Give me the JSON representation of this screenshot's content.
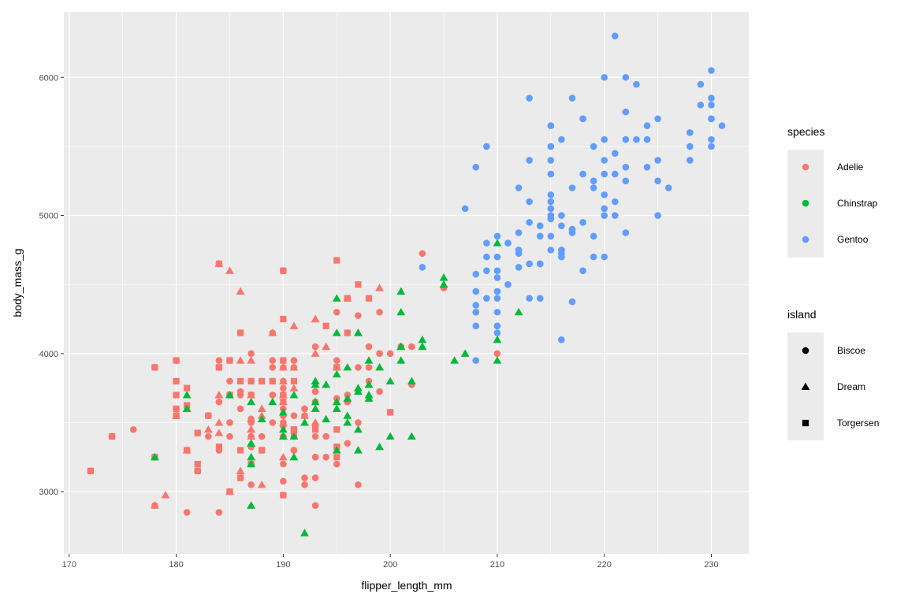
{
  "chart_data": {
    "type": "scatter",
    "xlabel": "flipper_length_mm",
    "ylabel": "body_mass_g",
    "xlim": [
      169.5,
      233.5
    ],
    "ylim": [
      2550,
      6475
    ],
    "x_ticks": [
      170,
      180,
      190,
      200,
      210,
      220,
      230
    ],
    "y_ticks": [
      3000,
      4000,
      5000,
      6000
    ],
    "grid": true,
    "legend_placement": "right",
    "legends": [
      {
        "title": "species",
        "entries": [
          {
            "label": "Adelie",
            "color": "#F8766D"
          },
          {
            "label": "Chinstrap",
            "color": "#00BA38"
          },
          {
            "label": "Gentoo",
            "color": "#619CFF"
          }
        ]
      },
      {
        "title": "island",
        "entries": [
          {
            "label": "Biscoe",
            "shape": "circle"
          },
          {
            "label": "Dream",
            "shape": "triangle"
          },
          {
            "label": "Torgersen",
            "shape": "square"
          }
        ]
      }
    ],
    "series": [
      {
        "species": "Adelie",
        "island": "Torgersen",
        "x": [
          181,
          186,
          195,
          193,
          190,
          181,
          195,
          193,
          190,
          186,
          180,
          182,
          191,
          198,
          185,
          195,
          197,
          184,
          194,
          174,
          180,
          189,
          185,
          180,
          187,
          183,
          187,
          172,
          180,
          178,
          178,
          188,
          184,
          195,
          196,
          190,
          180,
          181,
          184,
          182,
          195,
          186,
          196,
          185,
          190,
          182,
          190,
          191,
          186,
          188,
          190,
          200,
          187,
          191
        ],
        "y": [
          3750,
          3800,
          3250,
          3450,
          3650,
          3625,
          4675,
          3475,
          4250,
          3300,
          3700,
          3200,
          3800,
          4400,
          3700,
          3450,
          4500,
          3325,
          4200,
          3400,
          3600,
          3800,
          3950,
          3800,
          3800,
          3550,
          3200,
          3150,
          3950,
          3250,
          3900,
          3300,
          3900,
          3325,
          4150,
          3950,
          3550,
          3300,
          4650,
          3150,
          3900,
          3100,
          4400,
          3000,
          4600,
          3425,
          2975,
          3450,
          4150,
          3800,
          3700,
          3575,
          3700,
          3450
        ]
      },
      {
        "species": "Adelie",
        "island": "Biscoe",
        "x": [
          174,
          180,
          189,
          185,
          180,
          187,
          183,
          187,
          172,
          180,
          178,
          178,
          188,
          184,
          195,
          196,
          190,
          180,
          181,
          184,
          182,
          195,
          186,
          196,
          185,
          190,
          182,
          190,
          191,
          186,
          188,
          190,
          200,
          187,
          191,
          186,
          193,
          181,
          194,
          185,
          195,
          185,
          192,
          184,
          192,
          195,
          188,
          190,
          198,
          190,
          196,
          197,
          190,
          195,
          191,
          184,
          187,
          195,
          189,
          196,
          187,
          193,
          191,
          194,
          190,
          189,
          189,
          190,
          202,
          205,
          185,
          186,
          187,
          208,
          190,
          196,
          178,
          192,
          192,
          203,
          183,
          190,
          193,
          184,
          199,
          190,
          181,
          197,
          198,
          191,
          193,
          197,
          191,
          196,
          188,
          199,
          189,
          189,
          187,
          198,
          176,
          202,
          186,
          199,
          191,
          195,
          191,
          210,
          190,
          197,
          193,
          199,
          187,
          190,
          191,
          200,
          185,
          193,
          193,
          187,
          188,
          190,
          192,
          185,
          190,
          184,
          195,
          193,
          187,
          201
        ],
        "y": [
          3400,
          3600,
          3800,
          3950,
          3800,
          3800,
          3550,
          3200,
          3150,
          3950,
          3250,
          3900,
          3300,
          3900,
          3325,
          4150,
          3950,
          3550,
          3300,
          4650,
          3150,
          3900,
          3100,
          4400,
          3000,
          4600,
          3425,
          2975,
          3450,
          4150,
          3800,
          3700,
          3575,
          3700,
          3450,
          3600,
          2900,
          3300,
          3400,
          3700,
          3200,
          3800,
          3600,
          3950,
          3550,
          4300,
          3800,
          3400,
          4050,
          3700,
          3350,
          3050,
          3550,
          3900,
          3400,
          3650,
          3500,
          3900,
          3900,
          3650,
          3525,
          3725,
          3950,
          3250,
          3750,
          4150,
          3700,
          3800,
          3775,
          4475,
          3400,
          3700,
          4000,
          4300,
          3900,
          3650,
          2900,
          3050,
          3100,
          4725,
          3400,
          3200,
          3250,
          3300,
          4000,
          3500,
          2850,
          4275,
          3800,
          3900,
          3100,
          3900,
          3300,
          3700,
          3800,
          4000,
          3500,
          3950,
          3050,
          3900,
          3450,
          4050,
          3725,
          3725,
          3425,
          3675,
          3300,
          4000,
          3600,
          3500,
          3650,
          4300,
          3325,
          3075,
          3550,
          4000,
          3500,
          3650,
          4050,
          3800,
          3400,
          3400,
          3600,
          3700,
          3475,
          2850,
          3950,
          3400,
          3400,
          4050
        ]
      },
      {
        "species": "Adelie",
        "island": "Dream",
        "x": [
          190,
          195,
          191,
          187,
          193,
          184,
          190,
          188,
          190,
          187,
          184,
          183,
          188,
          184,
          195,
          190,
          185,
          190,
          178,
          192,
          184,
          195,
          186,
          190,
          181,
          187,
          185,
          193,
          186,
          192,
          180,
          187,
          190,
          188,
          197,
          186,
          190,
          193,
          196,
          187,
          193,
          194,
          191,
          187,
          179,
          181,
          191,
          186,
          188,
          199,
          189,
          187
        ],
        "y": [
          3900,
          3650,
          3750,
          3700,
          4250,
          3700,
          3800,
          3550,
          3650,
          2900,
          3500,
          3450,
          3050,
          3425,
          3900,
          3700,
          4600,
          3250,
          2900,
          3500,
          4650,
          3600,
          3150,
          3700,
          3600,
          3450,
          3000,
          4000,
          4450,
          3550,
          3550,
          3950,
          3500,
          3600,
          4150,
          3950,
          3400,
          3500,
          4400,
          3400,
          4250,
          4050,
          4200,
          3450,
          2975,
          3300,
          3900,
          4450,
          3600,
          4475,
          4150,
          3525
        ]
      },
      {
        "species": "Chinstrap",
        "island": "Dream",
        "x": [
          192,
          196,
          193,
          188,
          197,
          198,
          178,
          197,
          195,
          198,
          193,
          194,
          185,
          201,
          190,
          201,
          197,
          181,
          190,
          195,
          181,
          191,
          187,
          193,
          195,
          197,
          200,
          200,
          191,
          205,
          187,
          201,
          187,
          203,
          195,
          199,
          195,
          210,
          192,
          205,
          210,
          187,
          196,
          196,
          196,
          201,
          190,
          212,
          187,
          198,
          199,
          201,
          193,
          203,
          187,
          197,
          191,
          203,
          202,
          194,
          206,
          189,
          195,
          207,
          202,
          193,
          210,
          198
        ],
        "y": [
          3500,
          3900,
          3650,
          3525,
          3725,
          3950,
          3250,
          3750,
          4150,
          3700,
          3800,
          3775,
          3700,
          4050,
          3575,
          4050,
          3300,
          3700,
          3450,
          4400,
          3600,
          3400,
          2900,
          3800,
          3300,
          4150,
          3400,
          3800,
          3700,
          4550,
          3200,
          4300,
          3350,
          4100,
          3600,
          3900,
          3850,
          4800,
          2700,
          4500,
          3950,
          3650,
          3550,
          3500,
          3675,
          4450,
          3400,
          4300,
          3250,
          3675,
          3325,
          3950,
          3600,
          4050,
          3350,
          3450,
          3250,
          4050,
          3800,
          3525,
          3950,
          3650,
          3650,
          4000,
          3400,
          3775,
          4100,
          3775
        ]
      },
      {
        "species": "Gentoo",
        "island": "Biscoe",
        "x": [
          211,
          230,
          210,
          218,
          215,
          210,
          211,
          219,
          209,
          215,
          214,
          216,
          214,
          213,
          210,
          217,
          210,
          221,
          209,
          222,
          218,
          215,
          213,
          215,
          215,
          215,
          216,
          215,
          210,
          220,
          222,
          209,
          207,
          230,
          220,
          220,
          213,
          219,
          208,
          208,
          208,
          225,
          210,
          216,
          222,
          217,
          210,
          225,
          213,
          215,
          210,
          220,
          210,
          225,
          217,
          220,
          208,
          220,
          208,
          224,
          208,
          221,
          214,
          231,
          219,
          230,
          214,
          229,
          220,
          223,
          216,
          221,
          221,
          217,
          216,
          230,
          209,
          220,
          215,
          223,
          212,
          221,
          212,
          224,
          212,
          228,
          218,
          218,
          212,
          230,
          218,
          228,
          212,
          224,
          214,
          226,
          216,
          222,
          203,
          225,
          219,
          228,
          215,
          228,
          216,
          215,
          210,
          219,
          208,
          209,
          216,
          229,
          213,
          230,
          217,
          230,
          217,
          222,
          214,
          215,
          222,
          212,
          213
        ],
        "y": [
          4500,
          5700,
          4450,
          5700,
          5400,
          4550,
          4800,
          5200,
          4400,
          5150,
          4650,
          5550,
          4650,
          5850,
          4200,
          5850,
          4150,
          6300,
          4800,
          5350,
          5700,
          5000,
          4400,
          5050,
          5000,
          5100,
          4100,
          5650,
          4600,
          5550,
          5250,
          4700,
          5050,
          6050,
          5150,
          5400,
          4950,
          5250,
          4350,
          5350,
          3950,
          5700,
          4300,
          4750,
          5550,
          4900,
          4200,
          5400,
          5100,
          5300,
          4850,
          5300,
          4400,
          5000,
          4900,
          5050,
          4300,
          5000,
          4450,
          5550,
          4200,
          5300,
          4400,
          5650,
          4700,
          5700,
          4650,
          5800,
          4700,
          5550,
          4750,
          5000,
          5100,
          5200,
          4700,
          5800,
          4600,
          6000,
          4750,
          5950,
          4625,
          5450,
          4725,
          5350,
          4750,
          5600,
          4600,
          5300,
          4875,
          5550,
          4950,
          5400,
          4750,
          5650,
          4850,
          5200,
          4925,
          4875,
          4625,
          5250,
          4850,
          5600,
          4975,
          5500,
          4725,
          5500,
          4700,
          5500,
          4575,
          5500,
          5000,
          5950,
          4650,
          5500,
          4375,
          5850,
          4875,
          6000,
          4925,
          4850,
          5750,
          5200,
          5400
        ]
      }
    ]
  }
}
